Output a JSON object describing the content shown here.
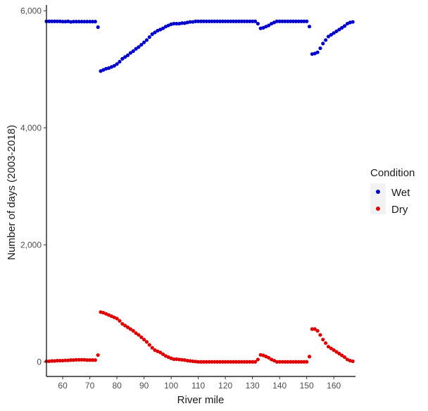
{
  "chart_data": {
    "type": "scatter",
    "title": "",
    "xlabel": "River mile",
    "ylabel": "Number of days (2003-2018)",
    "xlim": [
      54,
      168
    ],
    "ylim": [
      -250,
      6100
    ],
    "x_ticks": [
      60,
      70,
      80,
      90,
      100,
      110,
      120,
      130,
      140,
      150,
      160
    ],
    "y_ticks": [
      0,
      2000,
      4000,
      6000
    ],
    "x_tick_labels": [
      "60",
      "70",
      "80",
      "90",
      "100",
      "110",
      "120",
      "130",
      "140",
      "150",
      "160"
    ],
    "y_tick_labels": [
      "0",
      "2,000",
      "4,000",
      "6,000"
    ],
    "grid": false,
    "legend": {
      "title": "Condition",
      "position": "right"
    },
    "series": [
      {
        "name": "Wet",
        "color": "#0000cc",
        "points": [
          [
            54,
            5820
          ],
          [
            55,
            5820
          ],
          [
            56,
            5820
          ],
          [
            57,
            5820
          ],
          [
            58,
            5820
          ],
          [
            59,
            5820
          ],
          [
            60,
            5815
          ],
          [
            61,
            5815
          ],
          [
            62,
            5820
          ],
          [
            63,
            5810
          ],
          [
            64,
            5815
          ],
          [
            65,
            5815
          ],
          [
            66,
            5815
          ],
          [
            67,
            5815
          ],
          [
            68,
            5815
          ],
          [
            69,
            5815
          ],
          [
            70,
            5815
          ],
          [
            71,
            5815
          ],
          [
            72,
            5815
          ],
          [
            73,
            5720
          ],
          [
            74,
            4970
          ],
          [
            75,
            4990
          ],
          [
            76,
            5010
          ],
          [
            77,
            5020
          ],
          [
            78,
            5040
          ],
          [
            79,
            5060
          ],
          [
            80,
            5090
          ],
          [
            81,
            5130
          ],
          [
            82,
            5180
          ],
          [
            83,
            5210
          ],
          [
            84,
            5240
          ],
          [
            85,
            5280
          ],
          [
            86,
            5310
          ],
          [
            87,
            5350
          ],
          [
            88,
            5380
          ],
          [
            89,
            5420
          ],
          [
            90,
            5460
          ],
          [
            91,
            5500
          ],
          [
            92,
            5550
          ],
          [
            93,
            5600
          ],
          [
            94,
            5630
          ],
          [
            95,
            5660
          ],
          [
            96,
            5680
          ],
          [
            97,
            5700
          ],
          [
            98,
            5730
          ],
          [
            99,
            5750
          ],
          [
            100,
            5770
          ],
          [
            101,
            5780
          ],
          [
            102,
            5780
          ],
          [
            103,
            5780
          ],
          [
            104,
            5790
          ],
          [
            105,
            5790
          ],
          [
            106,
            5800
          ],
          [
            107,
            5810
          ],
          [
            108,
            5810
          ],
          [
            109,
            5820
          ],
          [
            110,
            5820
          ],
          [
            111,
            5820
          ],
          [
            112,
            5820
          ],
          [
            113,
            5820
          ],
          [
            114,
            5820
          ],
          [
            115,
            5820
          ],
          [
            116,
            5820
          ],
          [
            117,
            5820
          ],
          [
            118,
            5820
          ],
          [
            119,
            5820
          ],
          [
            120,
            5820
          ],
          [
            121,
            5820
          ],
          [
            122,
            5820
          ],
          [
            123,
            5820
          ],
          [
            124,
            5820
          ],
          [
            125,
            5820
          ],
          [
            126,
            5820
          ],
          [
            127,
            5820
          ],
          [
            128,
            5820
          ],
          [
            129,
            5820
          ],
          [
            130,
            5820
          ],
          [
            131,
            5820
          ],
          [
            132,
            5780
          ],
          [
            133,
            5700
          ],
          [
            134,
            5710
          ],
          [
            135,
            5730
          ],
          [
            136,
            5750
          ],
          [
            137,
            5780
          ],
          [
            138,
            5800
          ],
          [
            139,
            5820
          ],
          [
            140,
            5820
          ],
          [
            141,
            5820
          ],
          [
            142,
            5820
          ],
          [
            143,
            5820
          ],
          [
            144,
            5820
          ],
          [
            145,
            5820
          ],
          [
            146,
            5820
          ],
          [
            147,
            5820
          ],
          [
            148,
            5820
          ],
          [
            149,
            5820
          ],
          [
            150,
            5820
          ],
          [
            151,
            5730
          ],
          [
            152,
            5260
          ],
          [
            153,
            5270
          ],
          [
            154,
            5290
          ],
          [
            155,
            5360
          ],
          [
            156,
            5440
          ],
          [
            157,
            5500
          ],
          [
            158,
            5560
          ],
          [
            159,
            5590
          ],
          [
            160,
            5620
          ],
          [
            161,
            5650
          ],
          [
            162,
            5680
          ],
          [
            163,
            5710
          ],
          [
            164,
            5740
          ],
          [
            165,
            5780
          ],
          [
            166,
            5800
          ],
          [
            167,
            5810
          ]
        ]
      },
      {
        "name": "Dry",
        "color": "#e00000",
        "points": [
          [
            54,
            10
          ],
          [
            55,
            10
          ],
          [
            56,
            15
          ],
          [
            57,
            15
          ],
          [
            58,
            20
          ],
          [
            59,
            20
          ],
          [
            60,
            20
          ],
          [
            61,
            25
          ],
          [
            62,
            25
          ],
          [
            63,
            30
          ],
          [
            64,
            30
          ],
          [
            65,
            35
          ],
          [
            66,
            35
          ],
          [
            67,
            35
          ],
          [
            68,
            35
          ],
          [
            69,
            30
          ],
          [
            70,
            30
          ],
          [
            71,
            30
          ],
          [
            72,
            30
          ],
          [
            73,
            115
          ],
          [
            74,
            850
          ],
          [
            75,
            840
          ],
          [
            76,
            820
          ],
          [
            77,
            800
          ],
          [
            78,
            780
          ],
          [
            79,
            760
          ],
          [
            80,
            740
          ],
          [
            81,
            700
          ],
          [
            82,
            650
          ],
          [
            83,
            620
          ],
          [
            84,
            590
          ],
          [
            85,
            560
          ],
          [
            86,
            530
          ],
          [
            87,
            490
          ],
          [
            88,
            460
          ],
          [
            89,
            420
          ],
          [
            90,
            380
          ],
          [
            91,
            340
          ],
          [
            92,
            290
          ],
          [
            93,
            240
          ],
          [
            94,
            200
          ],
          [
            95,
            180
          ],
          [
            96,
            160
          ],
          [
            97,
            130
          ],
          [
            98,
            100
          ],
          [
            99,
            80
          ],
          [
            100,
            60
          ],
          [
            101,
            45
          ],
          [
            102,
            45
          ],
          [
            103,
            40
          ],
          [
            104,
            35
          ],
          [
            105,
            30
          ],
          [
            106,
            20
          ],
          [
            107,
            15
          ],
          [
            108,
            10
          ],
          [
            109,
            5
          ],
          [
            110,
            0
          ],
          [
            111,
            0
          ],
          [
            112,
            0
          ],
          [
            113,
            0
          ],
          [
            114,
            0
          ],
          [
            115,
            0
          ],
          [
            116,
            0
          ],
          [
            117,
            0
          ],
          [
            118,
            0
          ],
          [
            119,
            0
          ],
          [
            120,
            0
          ],
          [
            121,
            0
          ],
          [
            122,
            0
          ],
          [
            123,
            0
          ],
          [
            124,
            0
          ],
          [
            125,
            0
          ],
          [
            126,
            0
          ],
          [
            127,
            0
          ],
          [
            128,
            0
          ],
          [
            129,
            0
          ],
          [
            130,
            0
          ],
          [
            131,
            0
          ],
          [
            132,
            40
          ],
          [
            133,
            120
          ],
          [
            134,
            110
          ],
          [
            135,
            90
          ],
          [
            136,
            70
          ],
          [
            137,
            40
          ],
          [
            138,
            20
          ],
          [
            139,
            0
          ],
          [
            140,
            0
          ],
          [
            141,
            0
          ],
          [
            142,
            0
          ],
          [
            143,
            0
          ],
          [
            144,
            0
          ],
          [
            145,
            0
          ],
          [
            146,
            0
          ],
          [
            147,
            0
          ],
          [
            148,
            0
          ],
          [
            149,
            0
          ],
          [
            150,
            0
          ],
          [
            151,
            90
          ],
          [
            152,
            560
          ],
          [
            153,
            560
          ],
          [
            154,
            530
          ],
          [
            155,
            460
          ],
          [
            156,
            380
          ],
          [
            157,
            320
          ],
          [
            158,
            260
          ],
          [
            159,
            230
          ],
          [
            160,
            200
          ],
          [
            161,
            170
          ],
          [
            162,
            140
          ],
          [
            163,
            110
          ],
          [
            164,
            80
          ],
          [
            165,
            40
          ],
          [
            166,
            20
          ],
          [
            167,
            10
          ]
        ]
      }
    ]
  }
}
